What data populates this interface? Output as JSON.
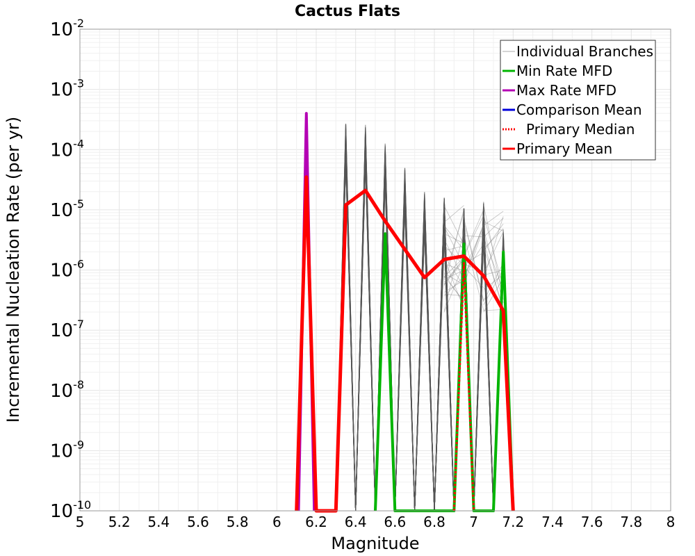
{
  "chart_data": {
    "type": "line",
    "title": "Cactus Flats",
    "xlabel": "Magnitude",
    "ylabel": "Incremental Nucleation Rate (per yr)",
    "xlim": [
      5,
      8
    ],
    "ylim": [
      1e-10,
      0.01
    ],
    "yscale": "log",
    "grid": true,
    "x_ticks": [
      "5",
      "5.2",
      "5.4",
      "5.6",
      "5.8",
      "6",
      "6.2",
      "6.4",
      "6.6",
      "6.8",
      "7",
      "7.2",
      "7.4",
      "7.6",
      "7.8",
      "8"
    ],
    "y_tick_exponents": [
      "-10",
      "-9",
      "-8",
      "-7",
      "-6",
      "-5",
      "-4",
      "-3",
      "-2"
    ],
    "y_tick_base": "10",
    "legend_position": "top-right",
    "legend": [
      {
        "label": "Individual Branches",
        "color": "#aaaaaa",
        "style": "thin"
      },
      {
        "label": "Min Rate MFD",
        "color": "#00b400",
        "style": "solid"
      },
      {
        "label": "Max Rate MFD",
        "color": "#b400b4",
        "style": "solid"
      },
      {
        "label": "Comparison Mean",
        "color": "#0000dc",
        "style": "solid"
      },
      {
        "label": "Primary Median",
        "color": "#ff0000",
        "style": "dotted"
      },
      {
        "label": "Primary Mean",
        "color": "#ff0000",
        "style": "solid"
      }
    ],
    "branches": {
      "count": 40,
      "color": "#555555",
      "spike_bins": [
        {
          "x": 6.35,
          "peak": 0.00027
        },
        {
          "x": 6.45,
          "peak": 0.00027
        },
        {
          "x": 6.55,
          "peak": 0.00013
        },
        {
          "x": 6.65,
          "peak": 5e-05
        },
        {
          "x": 6.75,
          "peak": 2e-05
        },
        {
          "x": 6.85,
          "peak": 1.6e-05
        },
        {
          "x": 6.95,
          "peak": 1.2e-05
        },
        {
          "x": 7.05,
          "peak": 1.4e-05
        },
        {
          "x": 7.15,
          "peak": 5e-06
        }
      ]
    },
    "series": [
      {
        "name": "Min Rate MFD",
        "color": "#00b400",
        "width": 4,
        "x": [
          6.5,
          6.55,
          6.6,
          6.9,
          6.95,
          7.0,
          7.1,
          7.15,
          7.2
        ],
        "y": [
          1e-10,
          4e-06,
          1e-10,
          1e-10,
          2.7e-06,
          1e-10,
          1e-10,
          2e-06,
          1e-10
        ]
      },
      {
        "name": "Max Rate MFD",
        "color": "#b400b4",
        "width": 4,
        "x": [
          6.11,
          6.15,
          6.19
        ],
        "y": [
          1e-10,
          0.0004,
          1e-10
        ]
      },
      {
        "name": "Primary Median",
        "color": "#ff0000",
        "width": 3,
        "dash": "3,3",
        "x": [
          6.9,
          6.95,
          7.0
        ],
        "y": [
          1e-10,
          1.3e-06,
          1e-10
        ]
      },
      {
        "name": "Primary Mean",
        "color": "#ff0000",
        "width": 5,
        "x": [
          6.1,
          6.15,
          6.2,
          6.3,
          6.35,
          6.45,
          6.55,
          6.65,
          6.75,
          6.85,
          6.95,
          7.05,
          7.15,
          7.2
        ],
        "y": [
          1e-10,
          3.5e-05,
          1e-10,
          1e-10,
          1.2e-05,
          2.1e-05,
          6.5e-06,
          2.2e-06,
          7.5e-07,
          1.5e-06,
          1.7e-06,
          8e-07,
          2.1e-07,
          1e-10
        ]
      }
    ]
  }
}
